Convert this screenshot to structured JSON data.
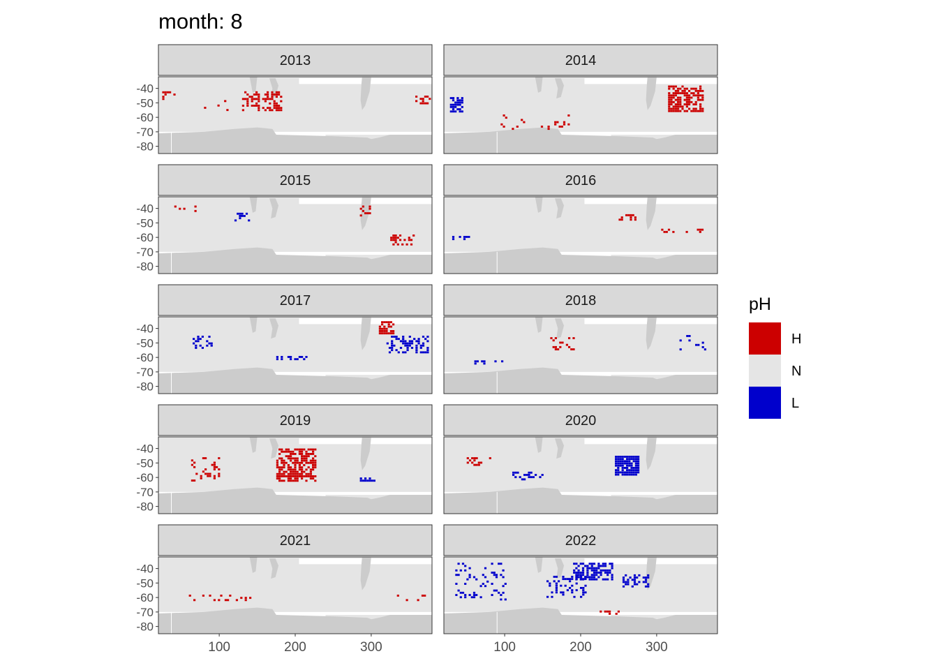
{
  "title": "month: 8",
  "chart_data": {
    "type": "heatmap",
    "title": "month: 8",
    "xlabel": "",
    "ylabel": "",
    "facet_by": "year",
    "facets": [
      "2013",
      "2014",
      "2015",
      "2016",
      "2017",
      "2018",
      "2019",
      "2020",
      "2021",
      "2022"
    ],
    "xlim": [
      20,
      380
    ],
    "ylim": [
      -85,
      -32
    ],
    "x_ticks": [
      100,
      200,
      300
    ],
    "x_tick_labels": [
      "100",
      "200",
      "300"
    ],
    "y_ticks": [
      -40,
      -50,
      -60,
      -70,
      -80
    ],
    "y_tick_labels": [
      "-40",
      "-50",
      "-60",
      "-70",
      "-80"
    ],
    "legend": {
      "title": "pH",
      "position": "right",
      "entries": [
        {
          "label": "H",
          "color": "#CC0000"
        },
        {
          "label": "N",
          "color": "#E5E5E5"
        },
        {
          "label": "L",
          "color": "#0000CC"
        }
      ]
    },
    "colors": {
      "H": "#CC0000",
      "N": "#E5E5E5",
      "L": "#0000CC",
      "land": "#CCCCCC",
      "strip": "#D9D9D9"
    },
    "anomalies": [
      {
        "year": "2013",
        "class": "H",
        "x": [
          130,
          180
        ],
        "y": [
          -55,
          -42
        ],
        "density": 0.45
      },
      {
        "year": "2013",
        "class": "H",
        "x": [
          80,
          110
        ],
        "y": [
          -58,
          -45
        ],
        "density": 0.08
      },
      {
        "year": "2013",
        "class": "H",
        "x": [
          25,
          40
        ],
        "y": [
          -48,
          -42
        ],
        "density": 0.25
      },
      {
        "year": "2013",
        "class": "H",
        "x": [
          358,
          378
        ],
        "y": [
          -50,
          -45
        ],
        "density": 0.5
      },
      {
        "year": "2014",
        "class": "H",
        "x": [
          315,
          360
        ],
        "y": [
          -56,
          -38
        ],
        "density": 0.6
      },
      {
        "year": "2014",
        "class": "L",
        "x": [
          28,
          45
        ],
        "y": [
          -56,
          -46
        ],
        "density": 0.7
      },
      {
        "year": "2014",
        "class": "H",
        "x": [
          80,
          200
        ],
        "y": [
          -68,
          -58
        ],
        "density": 0.06
      },
      {
        "year": "2015",
        "class": "L",
        "x": [
          120,
          140
        ],
        "y": [
          -48,
          -43
        ],
        "density": 0.4
      },
      {
        "year": "2015",
        "class": "H",
        "x": [
          325,
          355
        ],
        "y": [
          -66,
          -58
        ],
        "density": 0.3
      },
      {
        "year": "2015",
        "class": "H",
        "x": [
          285,
          300
        ],
        "y": [
          -45,
          -38
        ],
        "density": 0.25
      },
      {
        "year": "2015",
        "class": "H",
        "x": [
          35,
          70
        ],
        "y": [
          -42,
          -38
        ],
        "density": 0.15
      },
      {
        "year": "2016",
        "class": "H",
        "x": [
          300,
          360
        ],
        "y": [
          -57,
          -54
        ],
        "density": 0.3
      },
      {
        "year": "2016",
        "class": "H",
        "x": [
          250,
          275
        ],
        "y": [
          -48,
          -44
        ],
        "density": 0.3
      },
      {
        "year": "2016",
        "class": "L",
        "x": [
          28,
          60
        ],
        "y": [
          -62,
          -59
        ],
        "density": 0.3
      },
      {
        "year": "2017",
        "class": "L",
        "x": [
          320,
          375
        ],
        "y": [
          -56,
          -45
        ],
        "density": 0.4
      },
      {
        "year": "2017",
        "class": "H",
        "x": [
          310,
          330
        ],
        "y": [
          -43,
          -35
        ],
        "density": 0.55
      },
      {
        "year": "2017",
        "class": "L",
        "x": [
          65,
          90
        ],
        "y": [
          -53,
          -45
        ],
        "density": 0.35
      },
      {
        "year": "2017",
        "class": "L",
        "x": [
          175,
          215
        ],
        "y": [
          -62,
          -59
        ],
        "density": 0.4
      },
      {
        "year": "2018",
        "class": "H",
        "x": [
          160,
          190
        ],
        "y": [
          -54,
          -46
        ],
        "density": 0.3
      },
      {
        "year": "2018",
        "class": "L",
        "x": [
          60,
          100
        ],
        "y": [
          -65,
          -62
        ],
        "density": 0.4
      },
      {
        "year": "2018",
        "class": "L",
        "x": [
          330,
          365
        ],
        "y": [
          -54,
          -43
        ],
        "density": 0.12
      },
      {
        "year": "2019",
        "class": "H",
        "x": [
          175,
          225
        ],
        "y": [
          -62,
          -40
        ],
        "density": 0.65
      },
      {
        "year": "2019",
        "class": "H",
        "x": [
          60,
          100
        ],
        "y": [
          -62,
          -46
        ],
        "density": 0.2
      },
      {
        "year": "2019",
        "class": "L",
        "x": [
          285,
          305
        ],
        "y": [
          -62,
          -60
        ],
        "density": 0.7
      },
      {
        "year": "2020",
        "class": "L",
        "x": [
          245,
          275
        ],
        "y": [
          -58,
          -45
        ],
        "density": 0.85
      },
      {
        "year": "2020",
        "class": "H",
        "x": [
          50,
          80
        ],
        "y": [
          -52,
          -46
        ],
        "density": 0.5
      },
      {
        "year": "2020",
        "class": "L",
        "x": [
          110,
          150
        ],
        "y": [
          -62,
          -56
        ],
        "density": 0.25
      },
      {
        "year": "2021",
        "class": "H",
        "x": [
          60,
          140
        ],
        "y": [
          -62,
          -58
        ],
        "density": 0.12
      },
      {
        "year": "2021",
        "class": "H",
        "x": [
          325,
          370
        ],
        "y": [
          -62,
          -58
        ],
        "density": 0.12
      },
      {
        "year": "2022",
        "class": "L",
        "x": [
          190,
          240
        ],
        "y": [
          -48,
          -36
        ],
        "density": 0.7
      },
      {
        "year": "2022",
        "class": "L",
        "x": [
          155,
          205
        ],
        "y": [
          -60,
          -45
        ],
        "density": 0.35
      },
      {
        "year": "2022",
        "class": "L",
        "x": [
          255,
          290
        ],
        "y": [
          -52,
          -44
        ],
        "density": 0.45
      },
      {
        "year": "2022",
        "class": "L",
        "x": [
          35,
          100
        ],
        "y": [
          -62,
          -36
        ],
        "density": 0.15
      },
      {
        "year": "2022",
        "class": "H",
        "x": [
          225,
          250
        ],
        "y": [
          -71,
          -69
        ],
        "density": 0.4
      }
    ]
  }
}
